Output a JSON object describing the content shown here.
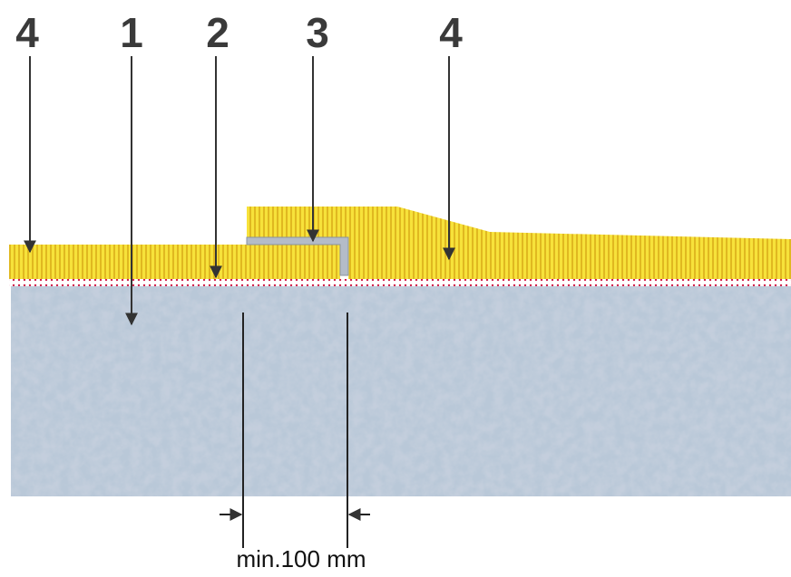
{
  "labels": [
    "4",
    "1",
    "2",
    "3",
    "4"
  ],
  "dimension": "min.100 mm"
}
